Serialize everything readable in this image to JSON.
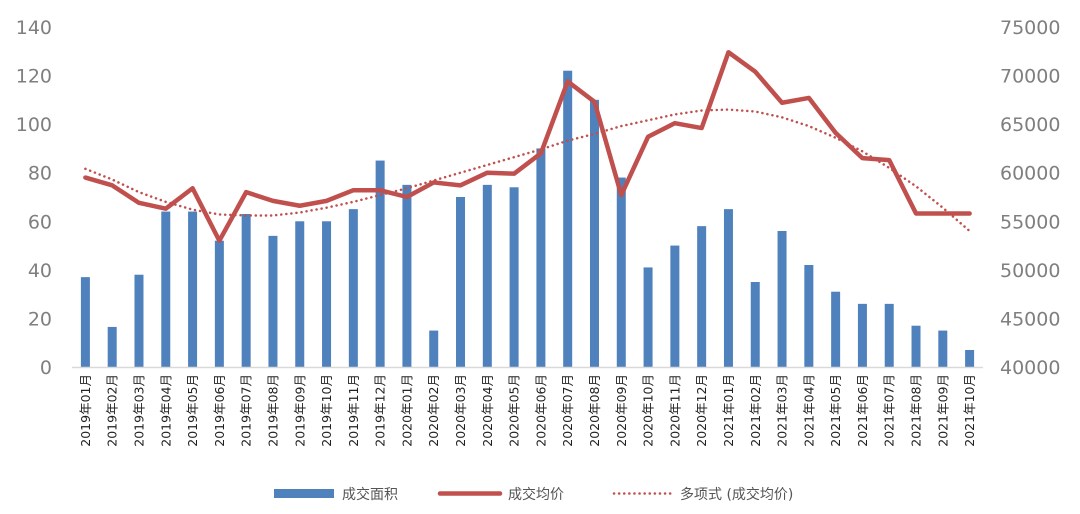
{
  "chart_data": {
    "type": "bar+line",
    "categories": [
      "2019年01月",
      "2019年02月",
      "2019年03月",
      "2019年04月",
      "2019年05月",
      "2019年06月",
      "2019年07月",
      "2019年08月",
      "2019年09月",
      "2019年10月",
      "2019年11月",
      "2019年12月",
      "2020年01月",
      "2020年02月",
      "2020年03月",
      "2020年04月",
      "2020年05月",
      "2020年06月",
      "2020年07月",
      "2020年08月",
      "2020年09月",
      "2020年10月",
      "2020年11月",
      "2020年12月",
      "2021年01月",
      "2021年02月",
      "2021年03月",
      "2021年04月",
      "2021年05月",
      "2021年06月",
      "2021年07月",
      "2021年08月",
      "2021年09月",
      "2021年10月"
    ],
    "y_left": {
      "range": [
        0,
        140
      ],
      "ticks": [
        "0",
        "20",
        "40",
        "60",
        "80",
        "100",
        "120",
        "140"
      ]
    },
    "y_right": {
      "range": [
        40000,
        75000
      ],
      "ticks": [
        "40000",
        "45000",
        "50000",
        "55000",
        "60000",
        "65000",
        "70000",
        "75000"
      ]
    },
    "grid": false,
    "legend_position": "bottom",
    "series": [
      {
        "name": "成交面积",
        "type": "bar",
        "axis": "left",
        "color": "#4f81bd",
        "values": [
          37,
          16.5,
          38,
          64,
          64,
          52,
          63,
          54,
          60,
          60,
          65,
          85,
          75,
          15,
          70,
          75,
          74,
          90,
          122,
          110,
          78,
          41,
          50,
          58,
          65,
          35,
          56,
          42,
          31,
          26,
          26,
          17,
          15,
          7
        ]
      },
      {
        "name": "成交均价",
        "type": "line",
        "axis": "right",
        "color": "#c0504d",
        "values": [
          59500,
          58700,
          56900,
          56300,
          58400,
          53000,
          58000,
          57100,
          56600,
          57100,
          58200,
          58200,
          57500,
          59000,
          58700,
          60000,
          59900,
          62000,
          69400,
          67300,
          57700,
          63700,
          65100,
          64600,
          72400,
          70400,
          67200,
          67700,
          64100,
          61500,
          61300,
          55800,
          55800,
          55800
        ]
      },
      {
        "name": "多项式 (成交均价)",
        "type": "trendline-dotted",
        "axis": "right",
        "color": "#c0504d",
        "values": [
          60400,
          59300,
          58000,
          57000,
          56200,
          55700,
          55600,
          55600,
          55900,
          56400,
          57000,
          57700,
          58400,
          59200,
          60000,
          60800,
          61600,
          62400,
          63300,
          64000,
          64800,
          65400,
          66000,
          66400,
          66500,
          66300,
          65700,
          64800,
          63600,
          62200,
          60500,
          58600,
          56400,
          54000
        ]
      }
    ]
  }
}
